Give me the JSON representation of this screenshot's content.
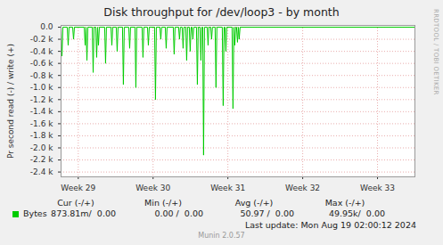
{
  "chart_data": {
    "type": "line",
    "title": "Disk throughput for /dev/loop3 - by month",
    "y_label": "Pr second read (-) / write (+)",
    "x": [
      29.27,
      29.282,
      29.294,
      29.353,
      29.365,
      29.377,
      29.425,
      29.437,
      29.449,
      29.58,
      29.592,
      29.604,
      29.616,
      29.628,
      29.687,
      29.699,
      29.711,
      29.734,
      29.746,
      29.758,
      29.77,
      29.782,
      29.853,
      29.865,
      29.877,
      29.937,
      29.949,
      29.961,
      30.008,
      30.02,
      30.032,
      30.091,
      30.103,
      30.115,
      30.175,
      30.187,
      30.199,
      30.258,
      30.27,
      30.282,
      30.353,
      30.365,
      30.377,
      30.425,
      30.437,
      30.449,
      30.52,
      30.532,
      30.544,
      30.591,
      30.603,
      30.615,
      30.663,
      30.675,
      30.687,
      30.77,
      30.782,
      30.794,
      30.841,
      30.853,
      30.865,
      30.889,
      30.901,
      30.913,
      30.937,
      30.949,
      30.961,
      30.984,
      30.996,
      31.008,
      31.02,
      31.032,
      31.044,
      31.08,
      31.092,
      31.104,
      31.127,
      31.139,
      31.151,
      31.163,
      31.175,
      31.187,
      31.223,
      31.235,
      31.246,
      31.27,
      31.282,
      31.294,
      31.329,
      31.341,
      31.353,
      31.425,
      31.437,
      31.449,
      31.461,
      31.473,
      31.485,
      31.556,
      31.568,
      31.58,
      31.592,
      31.604,
      31.616,
      31.628,
      31.64,
      31.651,
      31.663,
      34.0
    ],
    "series": [
      {
        "name": "Bytes",
        "color": "#00cc00",
        "values": [
          0,
          -480,
          0,
          0,
          -300,
          0,
          0,
          -200,
          0,
          0,
          -300,
          0,
          -550,
          0,
          0,
          -750,
          0,
          0,
          -500,
          0,
          -300,
          0,
          0,
          -600,
          0,
          0,
          -300,
          0,
          0,
          -400,
          0,
          0,
          -950,
          0,
          0,
          -350,
          0,
          0,
          -1000,
          0,
          0,
          -500,
          0,
          0,
          -300,
          0,
          0,
          -1200,
          0,
          0,
          -200,
          0,
          0,
          -350,
          0,
          0,
          -450,
          0,
          0,
          -200,
          0,
          0,
          -350,
          0,
          0,
          -550,
          0,
          0,
          -400,
          0,
          0,
          -200,
          0,
          0,
          -950,
          0,
          0,
          -550,
          0,
          0,
          -2120,
          0,
          0,
          -300,
          0,
          0,
          -200,
          0,
          0,
          -1000,
          0,
          0,
          -1300,
          0,
          0,
          -400,
          0,
          0,
          -1350,
          0,
          -300,
          0,
          0,
          -250,
          0,
          -200,
          0,
          0
        ],
        "summary": [
          "873.81m/  0.00",
          "0.00 /  0.00",
          "50.97 /  0.00",
          "49.95k/  0.00"
        ]
      }
    ],
    "summary_columns": [
      "Cur (-/+)",
      "Min (-/+)",
      "Avg (-/+)",
      "Max (-/+)"
    ],
    "xlim": [
      29.27,
      34.0
    ],
    "xticks": [
      {
        "value": 29.5,
        "label": "Week 29"
      },
      {
        "value": 30.5,
        "label": "Week 30"
      },
      {
        "value": 31.5,
        "label": "Week 31"
      },
      {
        "value": 32.5,
        "label": "Week 32"
      },
      {
        "value": 33.5,
        "label": "Week 33"
      }
    ],
    "ylim": [
      -2480,
      30
    ],
    "yticks": [
      {
        "value": 0,
        "label": "0.0"
      },
      {
        "value": -200,
        "label": "-0.2 k"
      },
      {
        "value": -400,
        "label": "-0.4 k"
      },
      {
        "value": -600,
        "label": "-0.6 k"
      },
      {
        "value": -800,
        "label": "-0.8 k"
      },
      {
        "value": -1000,
        "label": "-1.0 k"
      },
      {
        "value": -1200,
        "label": "-1.2 k"
      },
      {
        "value": -1400,
        "label": "-1.4 k"
      },
      {
        "value": -1600,
        "label": "-1.6 k"
      },
      {
        "value": -1800,
        "label": "-1.8 k"
      },
      {
        "value": -2000,
        "label": "-2.0 k"
      },
      {
        "value": -2200,
        "label": "-2.2 k"
      },
      {
        "value": -2400,
        "label": "-2.4 k"
      }
    ],
    "grid": true,
    "last_update": "Last update: Mon Aug 19 02:00:12 2024",
    "credit": "Munin 2.0.57",
    "watermark": "RRDTOOL / TOBI OETIKER"
  }
}
